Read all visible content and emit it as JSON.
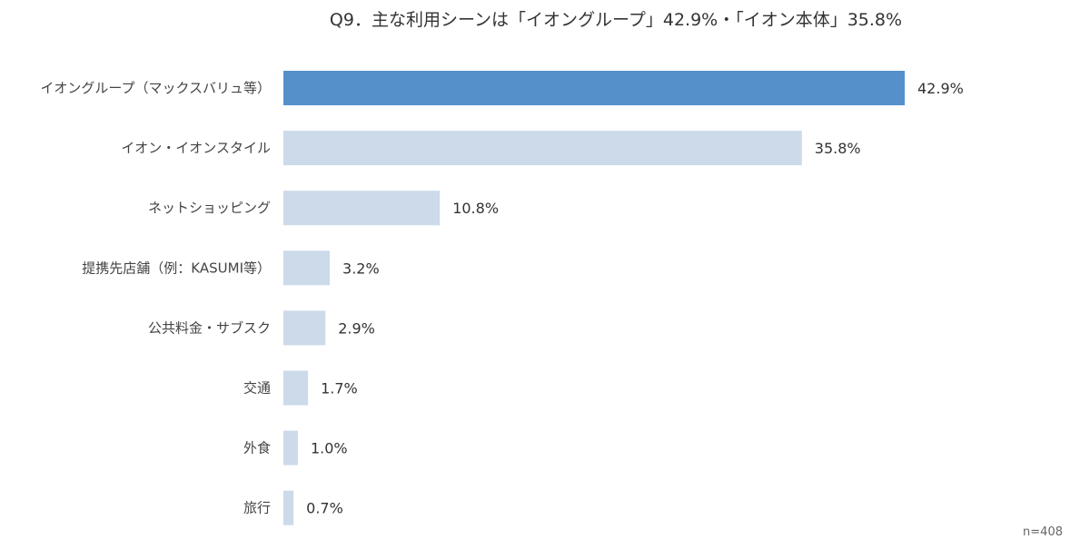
{
  "chart_data": {
    "type": "bar",
    "orientation": "horizontal",
    "title": "Q9．主な利用シーンは「イオングループ」42.9%・「イオン本体」35.8%",
    "categories": [
      "イオングループ（マックスバリュ等）",
      "イオン・イオンスタイル",
      "ネットショッピング",
      "提携先店舗（例：KASUMI等）",
      "公共料金・サブスク",
      "交通",
      "外食",
      "旅行"
    ],
    "values": [
      42.9,
      35.8,
      10.8,
      3.2,
      2.9,
      1.7,
      1.0,
      0.7
    ],
    "value_labels": [
      "42.9%",
      "35.8%",
      "10.8%",
      "3.2%",
      "2.9%",
      "1.7%",
      "1.0%",
      "0.7%"
    ],
    "unit": "%",
    "xlim": [
      0,
      42.9
    ],
    "grid": false,
    "legend": "none",
    "note": "n=408",
    "colors": {
      "highlight": "#5590CB",
      "bar": "#CCDAEA"
    },
    "highlight_index": 0
  }
}
